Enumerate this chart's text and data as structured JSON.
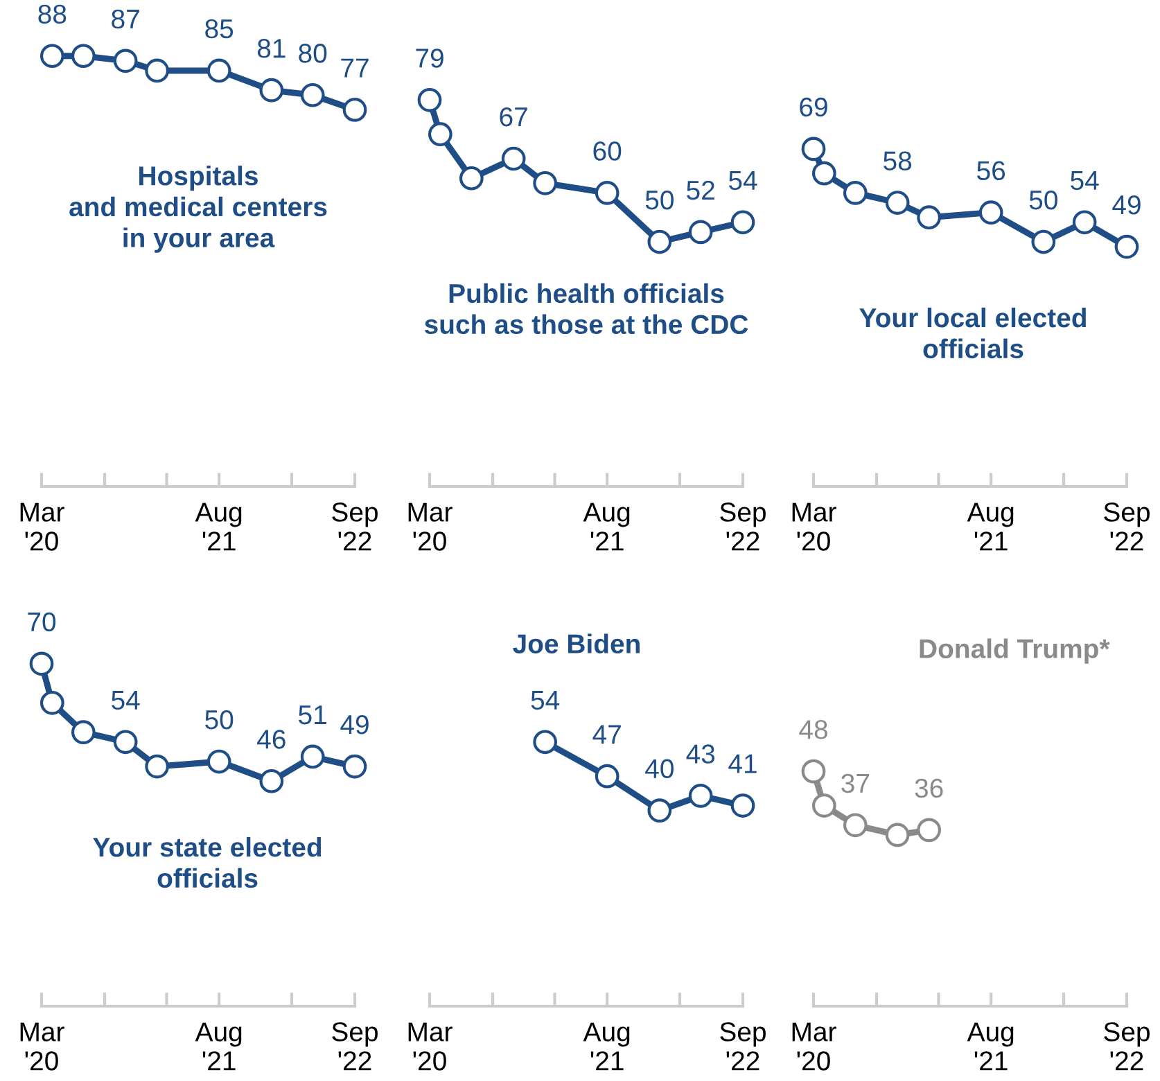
{
  "chart_data": [
    {
      "type": "line",
      "title": "Hospitals\nand medical centers\nin your area",
      "x": [
        "2020-04",
        "2020-07",
        "2020-11",
        "2021-02",
        "2021-08",
        "2022-01",
        "2022-05",
        "2022-09"
      ],
      "series": [
        {
          "color": "#1f4e87",
          "values": [
            88,
            88,
            87,
            85,
            85,
            81,
            80,
            77
          ],
          "value_labels": [
            "88",
            null,
            "87",
            null,
            "85",
            "81",
            "80",
            "77"
          ]
        }
      ],
      "xlim": [
        "2020-03",
        "2022-09"
      ],
      "xticks": [
        {
          "value": "2020-03",
          "label": "Mar\n'20"
        },
        {
          "value": "2020-09",
          "label": null
        },
        {
          "value": "2021-03",
          "label": null
        },
        {
          "value": "2021-08",
          "label": "Aug\n'21"
        },
        {
          "value": "2022-03",
          "label": null
        },
        {
          "value": "2022-09",
          "label": "Sep\n'22"
        }
      ],
      "tick_labels": "x",
      "marker": "circle",
      "line_style": "solid",
      "grid": false
    },
    {
      "type": "line",
      "title": "Public health officials\nsuch as those at the CDC",
      "x": [
        "2020-03",
        "2020-04",
        "2020-07",
        "2020-11",
        "2021-02",
        "2021-08",
        "2022-01",
        "2022-05",
        "2022-09"
      ],
      "series": [
        {
          "color": "#1f4e87",
          "values": [
            79,
            72,
            63,
            67,
            62,
            60,
            50,
            52,
            54
          ],
          "value_labels": [
            "79",
            null,
            null,
            "67",
            null,
            "60",
            "50",
            "52",
            "54"
          ]
        }
      ],
      "xlim": [
        "2020-03",
        "2022-09"
      ],
      "xticks": [
        {
          "value": "2020-03",
          "label": "Mar\n'20"
        },
        {
          "value": "2020-09",
          "label": null
        },
        {
          "value": "2021-03",
          "label": null
        },
        {
          "value": "2021-08",
          "label": "Aug\n'21"
        },
        {
          "value": "2022-03",
          "label": null
        },
        {
          "value": "2022-09",
          "label": "Sep\n'22"
        }
      ],
      "tick_labels": "x",
      "marker": "circle",
      "line_style": "solid",
      "grid": false
    },
    {
      "type": "line",
      "title": "Your local elected\nofficials",
      "x": [
        "2020-03",
        "2020-04",
        "2020-07",
        "2020-11",
        "2021-02",
        "2021-08",
        "2022-01",
        "2022-05",
        "2022-09"
      ],
      "series": [
        {
          "color": "#1f4e87",
          "values": [
            69,
            64,
            60,
            58,
            55,
            56,
            50,
            54,
            49
          ],
          "value_labels": [
            "69",
            null,
            null,
            "58",
            null,
            "56",
            "50",
            "54",
            "49"
          ]
        }
      ],
      "xlim": [
        "2020-03",
        "2022-09"
      ],
      "xticks": [
        {
          "value": "2020-03",
          "label": "Mar\n'20"
        },
        {
          "value": "2020-09",
          "label": null
        },
        {
          "value": "2021-03",
          "label": null
        },
        {
          "value": "2021-08",
          "label": "Aug\n'21"
        },
        {
          "value": "2022-03",
          "label": null
        },
        {
          "value": "2022-09",
          "label": "Sep\n'22"
        }
      ],
      "tick_labels": "x",
      "marker": "circle",
      "line_style": "solid",
      "grid": false
    },
    {
      "type": "line",
      "title": "Your state elected\nofficials",
      "x": [
        "2020-03",
        "2020-04",
        "2020-07",
        "2020-11",
        "2021-02",
        "2021-08",
        "2022-01",
        "2022-05",
        "2022-09"
      ],
      "series": [
        {
          "color": "#1f4e87",
          "values": [
            70,
            62,
            56,
            54,
            49,
            50,
            46,
            51,
            49
          ],
          "value_labels": [
            "70",
            null,
            null,
            "54",
            null,
            "50",
            "46",
            "51",
            "49"
          ]
        }
      ],
      "xlim": [
        "2020-03",
        "2022-09"
      ],
      "xticks": [
        {
          "value": "2020-03",
          "label": "Mar\n'20"
        },
        {
          "value": "2020-09",
          "label": null
        },
        {
          "value": "2021-03",
          "label": null
        },
        {
          "value": "2021-08",
          "label": "Aug\n'21"
        },
        {
          "value": "2022-03",
          "label": null
        },
        {
          "value": "2022-09",
          "label": "Sep\n'22"
        }
      ],
      "tick_labels": "x",
      "marker": "circle",
      "line_style": "solid",
      "grid": false
    },
    {
      "type": "line",
      "title": "Joe Biden",
      "x": [
        "2021-02",
        "2021-08",
        "2022-01",
        "2022-05",
        "2022-09"
      ],
      "series": [
        {
          "color": "#1f4e87",
          "values": [
            54,
            47,
            40,
            43,
            41
          ],
          "value_labels": [
            "54",
            "47",
            "40",
            "43",
            "41"
          ]
        }
      ],
      "xlim": [
        "2020-03",
        "2022-09"
      ],
      "xticks": [
        {
          "value": "2020-03",
          "label": "Mar\n'20"
        },
        {
          "value": "2020-09",
          "label": null
        },
        {
          "value": "2021-03",
          "label": null
        },
        {
          "value": "2021-08",
          "label": "Aug\n'21"
        },
        {
          "value": "2022-03",
          "label": null
        },
        {
          "value": "2022-09",
          "label": "Sep\n'22"
        }
      ],
      "tick_labels": "x",
      "marker": "circle",
      "line_style": "solid",
      "grid": false
    },
    {
      "type": "line",
      "title": "Donald Trump*",
      "x": [
        "2020-03",
        "2020-04",
        "2020-07",
        "2020-11",
        "2021-02"
      ],
      "series": [
        {
          "color": "#8a8a8a",
          "values": [
            48,
            41,
            37,
            35,
            36
          ],
          "value_labels": [
            "48",
            null,
            "37",
            null,
            "36"
          ]
        }
      ],
      "xlim": [
        "2020-03",
        "2022-09"
      ],
      "xticks": [
        {
          "value": "2020-03",
          "label": "Mar\n'20"
        },
        {
          "value": "2020-09",
          "label": null
        },
        {
          "value": "2021-03",
          "label": null
        },
        {
          "value": "2021-08",
          "label": "Aug\n'21"
        },
        {
          "value": "2022-03",
          "label": null
        },
        {
          "value": "2022-09",
          "label": "Sep\n'22"
        }
      ],
      "tick_labels": "x",
      "marker": "circle",
      "line_style": "solid",
      "grid": false
    }
  ]
}
